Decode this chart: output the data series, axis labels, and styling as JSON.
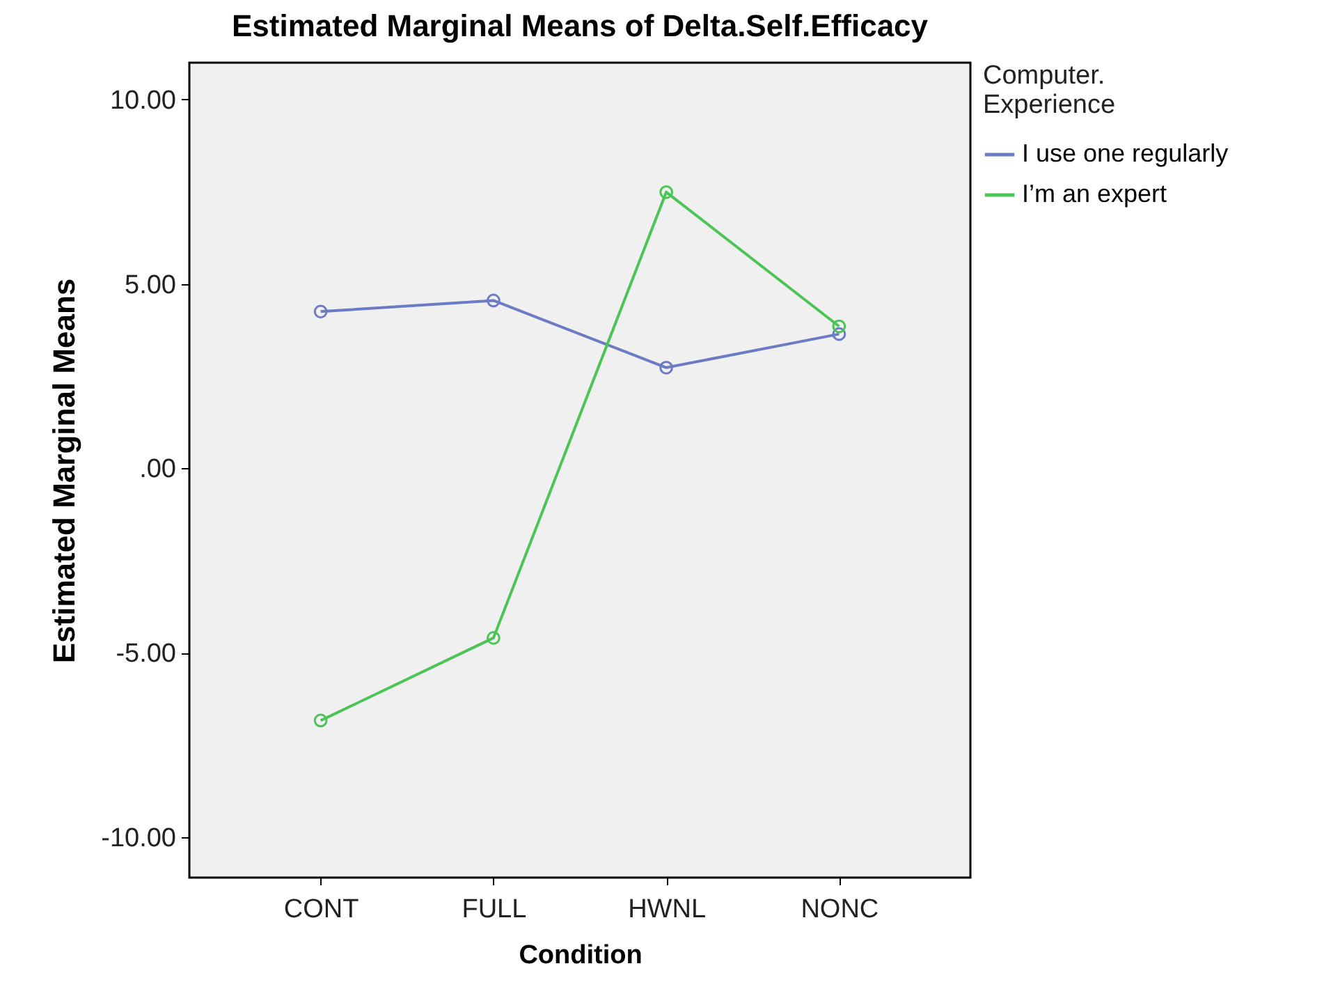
{
  "chart_data": {
    "type": "line",
    "title": "Estimated Marginal Means of Delta.Self.Efficacy",
    "xlabel": "Condition",
    "ylabel": "Estimated Marginal Means",
    "legend_title": "Computer.\nExperience",
    "legend": "top right",
    "grid": false,
    "marker": "circle",
    "categories": [
      "CONT",
      "FULL",
      "HWNL",
      "NONC"
    ],
    "ylim": [
      -11.1,
      11.0
    ],
    "yticks": [
      {
        "value": -10,
        "label": "-10.00"
      },
      {
        "value": -5,
        "label": "-5.00"
      },
      {
        "value": 0,
        "label": ".00"
      },
      {
        "value": 5,
        "label": "5.00"
      },
      {
        "value": 10,
        "label": "10.00"
      }
    ],
    "series": [
      {
        "name": "I use one regularly",
        "color": "#6b7cc4",
        "values": [
          4.25,
          4.55,
          2.73,
          3.64
        ]
      },
      {
        "name": "I’m an expert",
        "color": "#4cc456",
        "values": [
          -6.84,
          -4.6,
          7.49,
          3.85
        ]
      }
    ]
  }
}
